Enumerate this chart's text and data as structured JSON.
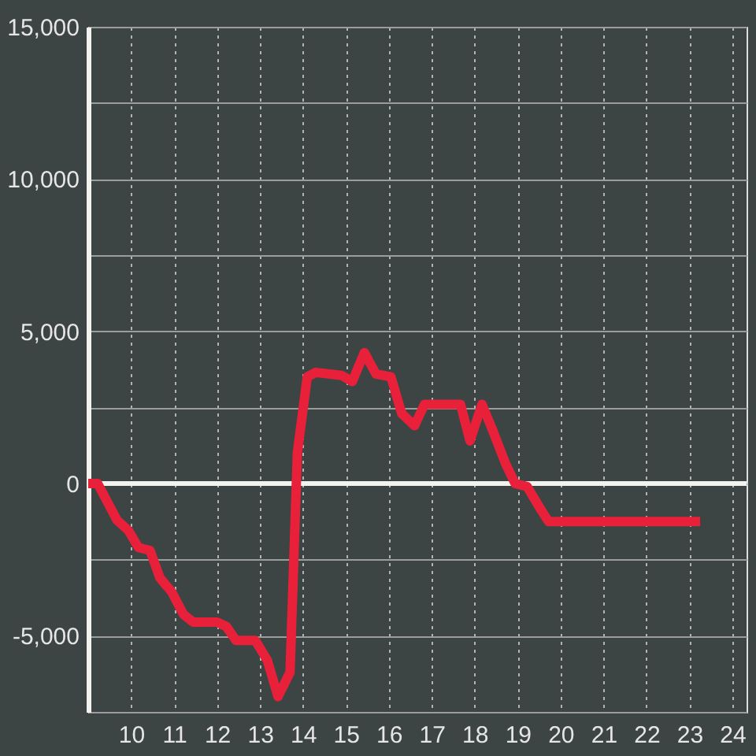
{
  "chart_data": {
    "type": "line",
    "x": [
      9,
      9.22,
      9.67,
      9.94,
      10.17,
      10.44,
      10.67,
      10.94,
      11.22,
      11.44,
      12.0,
      12.22,
      12.44,
      12.89,
      13.17,
      13.42,
      13.7,
      13.87,
      14.1,
      14.3,
      14.9,
      15.15,
      15.43,
      15.7,
      16.05,
      16.3,
      16.6,
      16.83,
      17.67,
      17.89,
      18.17,
      18.39,
      18.72,
      18.94,
      19.22,
      19.56,
      19.72,
      23.25
    ],
    "series": [
      {
        "color": "#e8203a",
        "values": [
          0,
          0,
          -1200,
          -1550,
          -2100,
          -2200,
          -3100,
          -3550,
          -4300,
          -4550,
          -4550,
          -4700,
          -5150,
          -5150,
          -5800,
          -7000,
          -6200,
          1000,
          3500,
          3650,
          3550,
          3350,
          4300,
          3600,
          3500,
          2300,
          1900,
          2600,
          2600,
          1400,
          2600,
          1850,
          650,
          0,
          -100,
          -900,
          -1250,
          -1250
        ]
      }
    ],
    "xlim": [
      9,
      24.33
    ],
    "xticks": [
      10,
      11,
      12,
      13,
      14,
      15,
      16,
      17,
      18,
      19,
      20,
      21,
      22,
      23,
      24
    ],
    "ylim": [
      -7500,
      15000
    ],
    "yticks": [
      {
        "value": -7500,
        "label": null
      },
      {
        "value": -5000,
        "label": "-5,000"
      },
      {
        "value": -2500,
        "label": null
      },
      0,
      {
        "value": 2500,
        "label": null
      },
      {
        "value": 5000,
        "label": "5,000"
      },
      {
        "value": 7500,
        "label": null
      },
      {
        "value": 10000,
        "label": "10,000"
      },
      {
        "value": 12500,
        "label": null
      },
      {
        "value": 15000,
        "label": "15,000"
      }
    ],
    "ref_lines": [
      {
        "axis": "y",
        "value": 0,
        "color": "#f2f2ee"
      }
    ],
    "grid": true,
    "line_style": "solid"
  }
}
